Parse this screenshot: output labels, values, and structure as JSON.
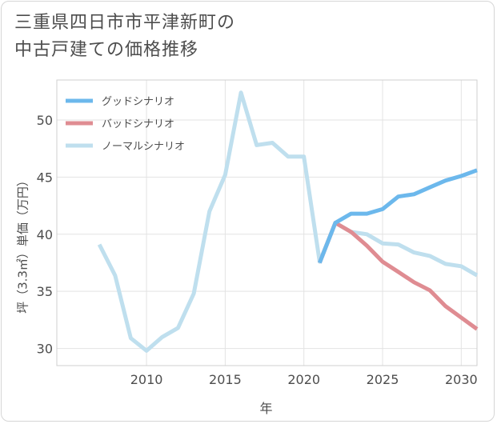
{
  "title_lines": [
    "三重県四日市市平津新町の",
    "中古戸建ての価格推移"
  ],
  "chart_data": {
    "type": "line",
    "xlabel": "年",
    "ylabel": "坪（3.3㎡）単価（万円）",
    "xlim": [
      2004.3,
      2031
    ],
    "ylim": [
      28.5,
      53.5
    ],
    "xticks": [
      2010,
      2015,
      2020,
      2025,
      2030
    ],
    "yticks": [
      30,
      35,
      40,
      45,
      50
    ],
    "grid": true,
    "legend_position": "top-left",
    "series": [
      {
        "name": "グッドシナリオ",
        "color": "#6cb8ec",
        "points": [
          [
            2021,
            37.5
          ],
          [
            2022,
            41.0
          ],
          [
            2023,
            41.8
          ],
          [
            2024,
            41.8
          ],
          [
            2025,
            42.2
          ],
          [
            2026,
            43.3
          ],
          [
            2027,
            43.5
          ],
          [
            2028,
            44.1
          ],
          [
            2029,
            44.7
          ],
          [
            2030,
            45.1
          ],
          [
            2031,
            45.6
          ]
        ]
      },
      {
        "name": "バッドシナリオ",
        "color": "#df8c92",
        "points": [
          [
            2021,
            37.5
          ],
          [
            2022,
            41.0
          ],
          [
            2023,
            40.2
          ],
          [
            2024,
            39.0
          ],
          [
            2025,
            37.6
          ],
          [
            2026,
            36.7
          ],
          [
            2027,
            35.8
          ],
          [
            2028,
            35.1
          ],
          [
            2029,
            33.7
          ],
          [
            2030,
            32.7
          ],
          [
            2031,
            31.7
          ]
        ]
      },
      {
        "name": "ノーマルシナリオ",
        "color": "#bfdfee",
        "points": [
          [
            2007,
            39.1
          ],
          [
            2008,
            36.4
          ],
          [
            2009,
            30.9
          ],
          [
            2010,
            29.8
          ],
          [
            2011,
            31.0
          ],
          [
            2012,
            31.8
          ],
          [
            2013,
            34.8
          ],
          [
            2014,
            42.0
          ],
          [
            2015,
            45.2
          ],
          [
            2016,
            52.4
          ],
          [
            2017,
            47.8
          ],
          [
            2018,
            48.0
          ],
          [
            2019,
            46.8
          ],
          [
            2020,
            46.8
          ],
          [
            2021,
            37.6
          ],
          [
            2022,
            41.0
          ],
          [
            2023,
            40.2
          ],
          [
            2024,
            40.0
          ],
          [
            2025,
            39.2
          ],
          [
            2026,
            39.1
          ],
          [
            2027,
            38.4
          ],
          [
            2028,
            38.1
          ],
          [
            2029,
            37.4
          ],
          [
            2030,
            37.2
          ],
          [
            2031,
            36.4
          ]
        ]
      }
    ]
  }
}
